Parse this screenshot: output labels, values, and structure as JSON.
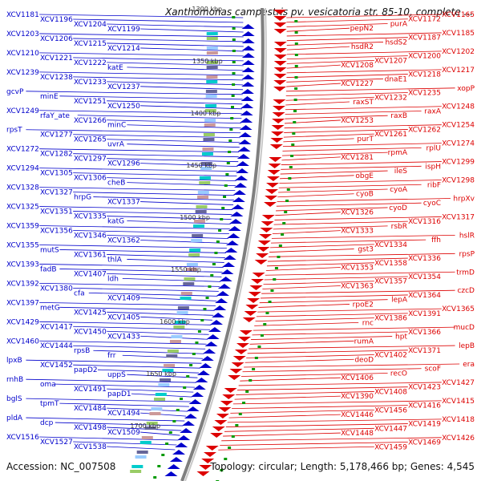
{
  "title": "Xanthomonas campestris pv. vesicatoria str. 85-10, complete ...",
  "accession": "Accession: NC_007508",
  "topology": "Topology: circular; Length: 5,178,466 bp; Genes: 4,545",
  "colors": {
    "left_strand": "#0000cc",
    "right_strand": "#dd0000",
    "backbone": "#7f7f7f",
    "scale_tick": "#009900"
  },
  "scale_labels": [
    "1300 kbp",
    "1350 kbp",
    "1400 kbp",
    "1450 kbp",
    "1500 kbp",
    "1550 kbp",
    "1600 kbp",
    "1650 kbp",
    "1700 kbp"
  ],
  "left_labels": [
    "XCV1181",
    "XCV1196",
    "XCV1204",
    "XCV1199",
    "XCV1203",
    "XCV1206",
    "XCV1215",
    "XCV1214",
    "XCV1210",
    "XCV1221",
    "XCV1222",
    "katE",
    "XCV1239",
    "XCV1238",
    "XCV1233",
    "XCV1237",
    "gcvP",
    "minE",
    "XCV1251",
    "XCV1250",
    "XCV1249",
    "rfaY_ate",
    "XCV1266",
    "minC",
    "rpsT",
    "XCV1277",
    "XCV1265",
    "uvrA",
    "XCV1272",
    "XCV1282",
    "XCV1297",
    "XCV1296",
    "XCV1294",
    "XCV1305",
    "XCV1306",
    "cheB",
    "XCV1328",
    "XCV1327",
    "hrpG",
    "XCV1337",
    "XCV1325",
    "XCV1351",
    "XCV1335",
    "katG",
    "XCV1359",
    "XCV1356",
    "XCV1346",
    "XCV1362",
    "XCV1355",
    "mutS",
    "XCV1361",
    "thlA",
    "XCV1393",
    "fadB",
    "XCV1407",
    "ldh",
    "XCV1392",
    "XCV1380",
    "cfa",
    "XCV1409",
    "XCV1397",
    "metG",
    "XCV1425",
    "XCV1405",
    "XCV1429",
    "XCV1417",
    "XCV1450",
    "XCV1433",
    "XCV1460",
    "XCV1444",
    "rpsB",
    "frr",
    "lpxB",
    "XCV1452",
    "papD2",
    "uppS",
    "rnhB",
    "oma",
    "XCV1491",
    "papD1",
    "bglS",
    "tpmT",
    "XCV1484",
    "XCV1494",
    "pldA",
    "dcp",
    "XCV1498",
    "XCV1509",
    "XCV1516",
    "XCV1527",
    "XCV1538"
  ],
  "right_labels": [
    "XCV1165",
    "XCV1172",
    "purA",
    "pepN2",
    "XCV1185",
    "XCV1187",
    "hsdS2",
    "hsdR2",
    "XCV1202",
    "XCV1200",
    "XCV1207",
    "XCV1208",
    "XCV1217",
    "XCV1218",
    "dnaE1",
    "XCV1227",
    "xopP",
    "XCV1235",
    "XCV1232",
    "raxST",
    "XCV1248",
    "raxA",
    "raxB",
    "XCV1253",
    "XCV1254",
    "XCV1262",
    "XCV1261",
    "purT",
    "XCV1274",
    "rplU",
    "rpmA",
    "XCV1281",
    "XCV1299",
    "ispH",
    "ileS",
    "obgE",
    "XCV1298",
    "ribF",
    "cyoA",
    "cyoB",
    "hrpXv",
    "cyoC",
    "cyoD",
    "XCV1326",
    "XCV1317",
    "XCV1316",
    "rsbR",
    "XCV1333",
    "hslR",
    "ffh",
    "XCV1334",
    "gst3",
    "rpsP",
    "XCV1336",
    "XCV1358",
    "XCV1353",
    "trmD",
    "XCV1354",
    "XCV1357",
    "XCV1363",
    "czcD",
    "XCV1364",
    "lepA",
    "rpoE2",
    "XCV1365",
    "XCV1391",
    "XCV1386",
    "rnc",
    "mucD",
    "XCV1366",
    "hpt",
    "rumA",
    "lepB",
    "XCV1371",
    "XCV1402",
    "deoD",
    "era",
    "scoF",
    "recO",
    "XCV1406",
    "XCV1427",
    "XCV1423",
    "XCV1408",
    "XCV1390",
    "XCV1415",
    "XCV1416",
    "XCV1456",
    "XCV1446",
    "XCV1418",
    "XCV1419",
    "XCV1447",
    "XCV1448",
    "XCV1426",
    "XCV1469",
    "XCV1459"
  ]
}
